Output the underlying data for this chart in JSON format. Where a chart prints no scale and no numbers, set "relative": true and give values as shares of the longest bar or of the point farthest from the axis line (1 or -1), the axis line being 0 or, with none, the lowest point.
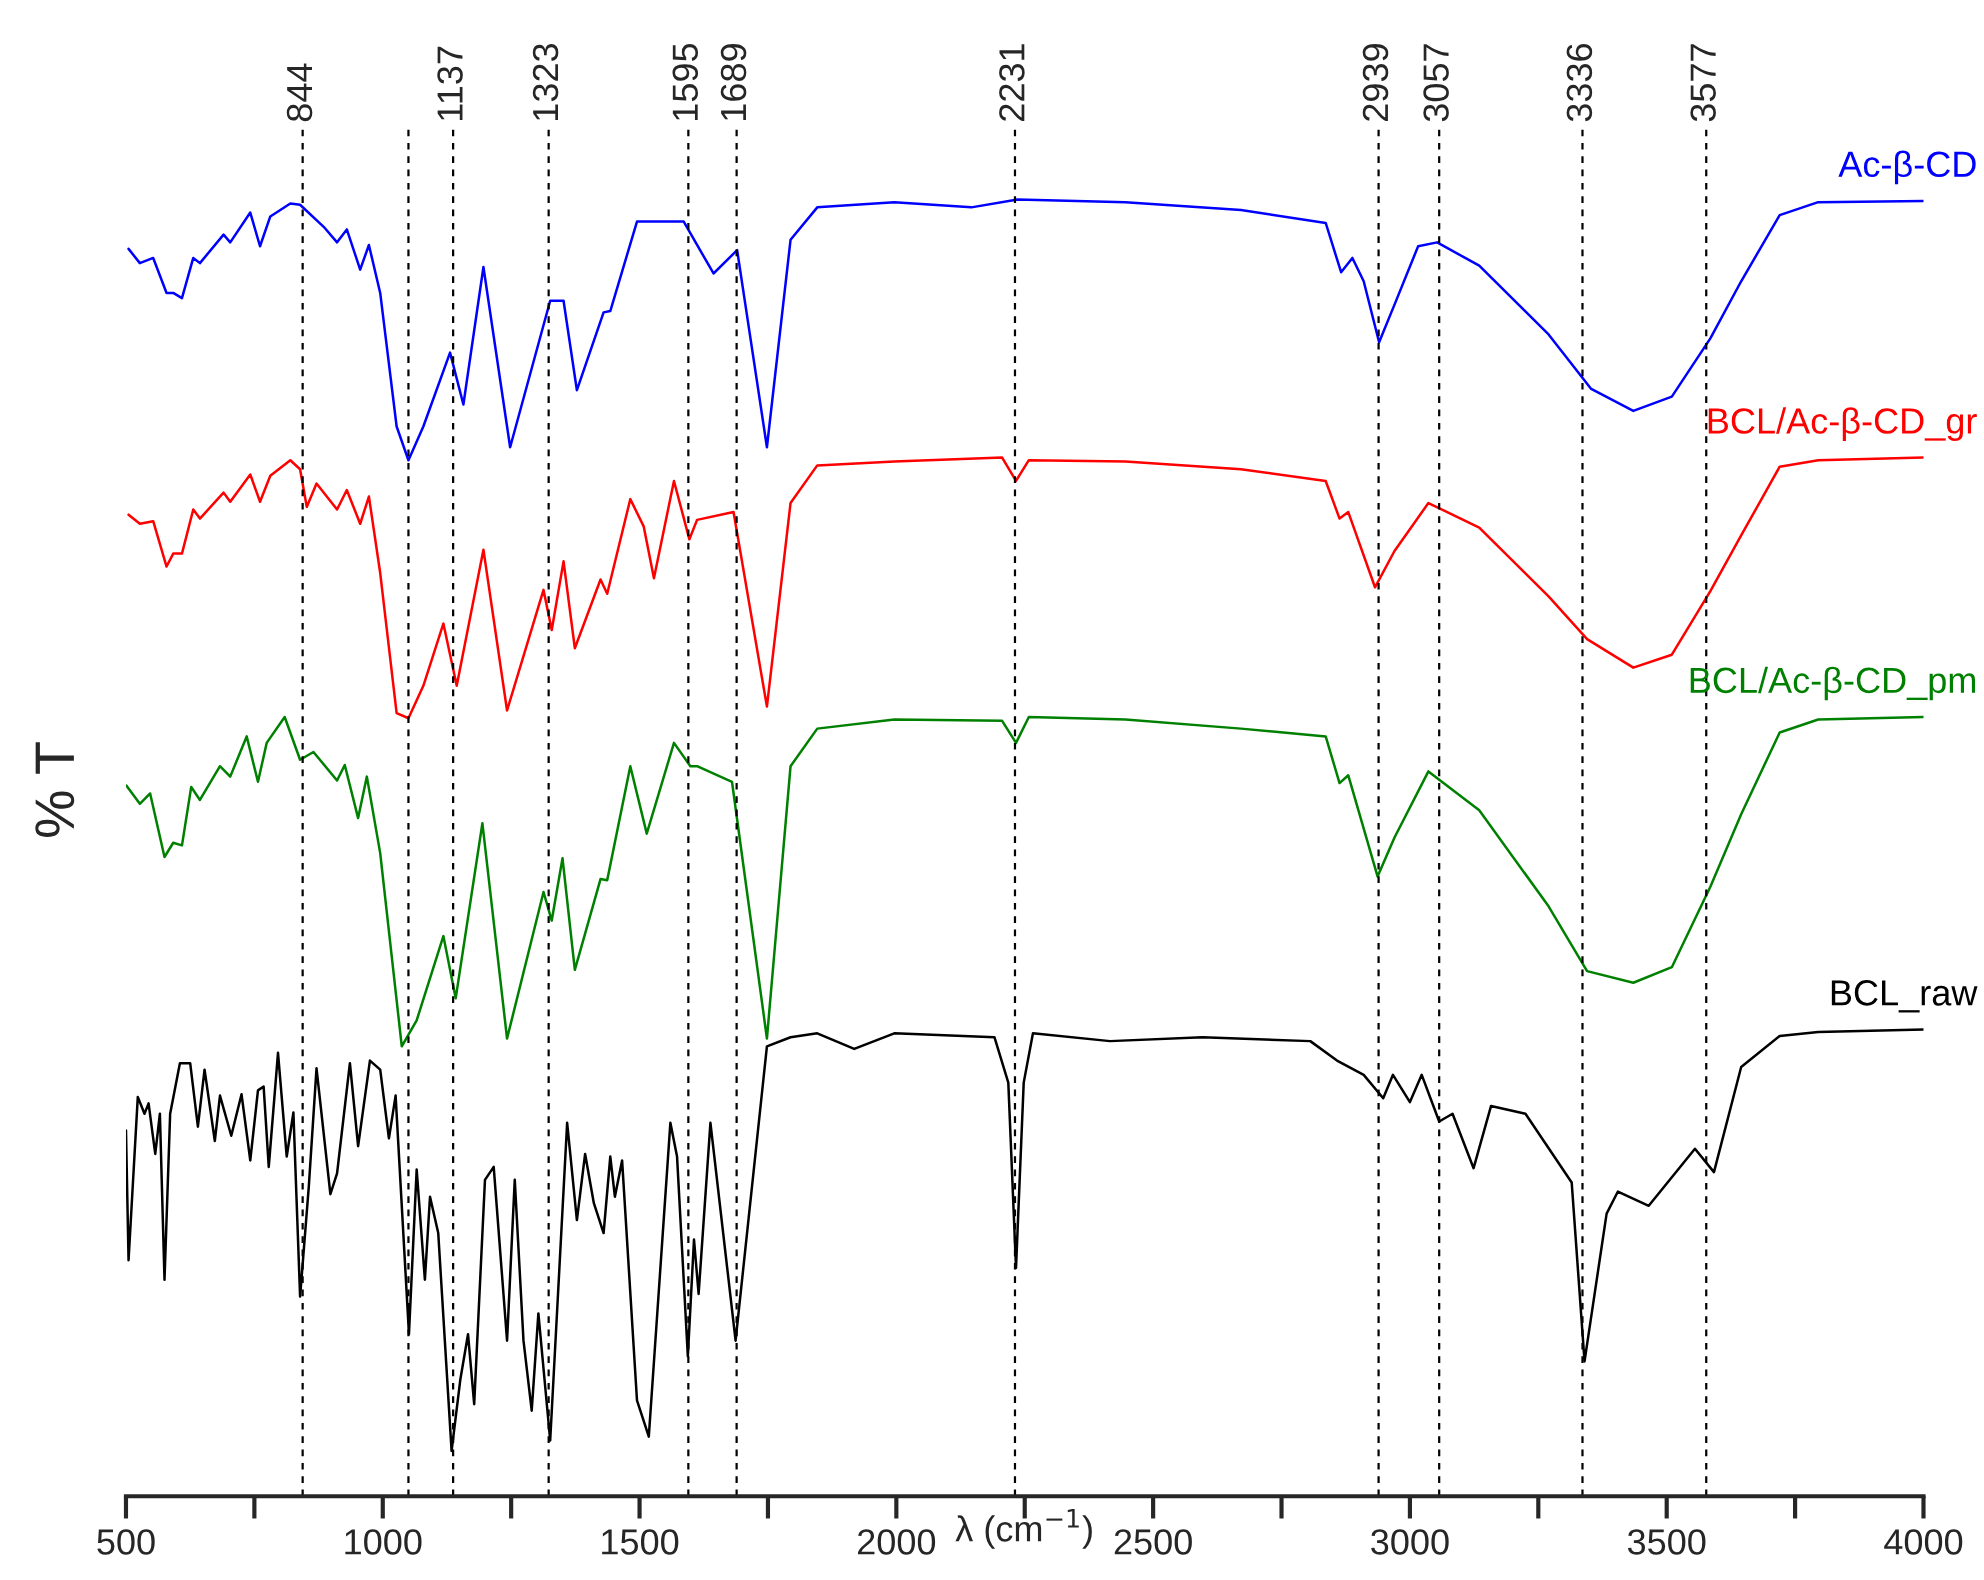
{
  "chart_data": {
    "type": "line",
    "relative": true,
    "xlabel": "λ (cm$^{−1}$)",
    "ylabel": "% T",
    "xlim": [
      500,
      4000
    ],
    "xticks": [
      500,
      {
        "value": 750,
        "label": null
      },
      1000,
      {
        "value": 1250,
        "label": null
      },
      1500,
      {
        "value": 1750,
        "label": null
      },
      2000,
      {
        "value": 2250,
        "label": null
      },
      2500,
      {
        "value": 2750,
        "label": null
      },
      3000,
      {
        "value": 3250,
        "label": null
      },
      3500,
      {
        "value": 3750,
        "label": null
      },
      4000
    ],
    "tick_labels": "x",
    "legend": false,
    "grid": false,
    "ref_lines": [
      {
        "axis": "x",
        "value": 844,
        "label": "844",
        "color": "#000000",
        "line_style": "dashed"
      },
      {
        "axis": "x",
        "value": 1050,
        "label": null,
        "color": "#000000",
        "line_style": "dashed"
      },
      {
        "axis": "x",
        "value": 1137,
        "label": "1137",
        "color": "#000000",
        "line_style": "dashed"
      },
      {
        "axis": "x",
        "value": 1323,
        "label": "1323",
        "color": "#000000",
        "line_style": "dashed"
      },
      {
        "axis": "x",
        "value": 1595,
        "label": "1595",
        "color": "#000000",
        "line_style": "dashed"
      },
      {
        "axis": "x",
        "value": 1689,
        "label": "1689",
        "color": "#000000",
        "line_style": "dashed"
      },
      {
        "axis": "x",
        "value": 2231,
        "label": "2231",
        "color": "#000000",
        "line_style": "dashed"
      },
      {
        "axis": "x",
        "value": 2939,
        "label": "2939",
        "color": "#000000",
        "line_style": "dashed"
      },
      {
        "axis": "x",
        "value": 3057,
        "label": "3057",
        "color": "#000000",
        "line_style": "dashed"
      },
      {
        "axis": "x",
        "value": 3336,
        "label": "3336",
        "color": "#000000",
        "line_style": "dashed"
      },
      {
        "axis": "x",
        "value": 3577,
        "label": "3577",
        "color": "#000000",
        "line_style": "dashed"
      }
    ],
    "series": [
      {
        "name": "Ac-β-CD",
        "color": "#0000ff",
        "x": [
          505,
          527,
          553,
          579,
          592,
          609,
          631,
          644,
          690,
          703,
          742,
          761,
          781,
          820,
          839,
          885,
          911,
          930,
          956,
          973,
          995,
          1027,
          1050,
          1079,
          1131,
          1157,
          1196,
          1248,
          1326,
          1352,
          1378,
          1430,
          1443,
          1495,
          1586,
          1644,
          1690,
          1748,
          1794,
          1846,
          1996,
          2146,
          2236,
          2446,
          2671,
          2836,
          2866,
          2888,
          2910,
          2940,
          2970,
          3016,
          3053,
          3135,
          3270,
          3353,
          3435,
          3510,
          3585,
          3645,
          3720,
          3795,
          4000
        ],
        "values": [
          0.962,
          0.951,
          0.955,
          0.928,
          0.928,
          0.924,
          0.955,
          0.951,
          0.973,
          0.967,
          0.99,
          0.964,
          0.987,
          0.997,
          0.996,
          0.979,
          0.967,
          0.977,
          0.946,
          0.965,
          0.928,
          0.825,
          0.799,
          0.825,
          0.882,
          0.842,
          0.948,
          0.809,
          0.922,
          0.922,
          0.853,
          0.913,
          0.914,
          0.983,
          0.983,
          0.943,
          0.961,
          0.809,
          0.969,
          0.994,
          0.998,
          0.994,
          1.0,
          0.998,
          0.992,
          0.982,
          0.944,
          0.955,
          0.937,
          0.89,
          0.919,
          0.964,
          0.967,
          0.949,
          0.896,
          0.854,
          0.837,
          0.848,
          0.893,
          0.937,
          0.988,
          0.998,
          0.999
        ]
      },
      {
        "name": "BCL/Ac-β-CD_gr",
        "color": "#ff0000",
        "x": [
          505,
          527,
          553,
          579,
          592,
          609,
          631,
          644,
          690,
          703,
          742,
          761,
          781,
          820,
          839,
          852,
          871,
          911,
          930,
          956,
          973,
          995,
          1027,
          1050,
          1079,
          1118,
          1144,
          1196,
          1242,
          1313,
          1329,
          1352,
          1374,
          1424,
          1437,
          1482,
          1508,
          1528,
          1567,
          1597,
          1612,
          1683,
          1748,
          1794,
          1846,
          1996,
          2206,
          2233,
          2258,
          2446,
          2671,
          2836,
          2863,
          2880,
          2932,
          2970,
          3036,
          3135,
          3270,
          3345,
          3435,
          3510,
          3585,
          3645,
          3720,
          3795,
          4000
        ],
        "values": [
          0.757,
          0.75,
          0.752,
          0.717,
          0.727,
          0.727,
          0.761,
          0.754,
          0.774,
          0.767,
          0.788,
          0.767,
          0.787,
          0.799,
          0.792,
          0.763,
          0.781,
          0.761,
          0.776,
          0.75,
          0.771,
          0.712,
          0.604,
          0.6,
          0.625,
          0.673,
          0.625,
          0.73,
          0.606,
          0.699,
          0.668,
          0.721,
          0.654,
          0.707,
          0.696,
          0.769,
          0.748,
          0.708,
          0.783,
          0.738,
          0.753,
          0.759,
          0.609,
          0.766,
          0.795,
          0.798,
          0.801,
          0.783,
          0.799,
          0.798,
          0.792,
          0.783,
          0.754,
          0.759,
          0.701,
          0.729,
          0.766,
          0.747,
          0.694,
          0.661,
          0.639,
          0.649,
          0.698,
          0.741,
          0.794,
          0.799,
          0.801
        ]
      },
      {
        "name": "BCL/Ac-β-CD_pm",
        "color": "#008000",
        "x": [
          501,
          527,
          547,
          575,
          592,
          609,
          627,
          644,
          683,
          703,
          735,
          757,
          774,
          809,
          839,
          865,
          911,
          926,
          952,
          969,
          995,
          1037,
          1066,
          1118,
          1142,
          1194,
          1242,
          1313,
          1329,
          1350,
          1374,
          1424,
          1437,
          1482,
          1514,
          1567,
          1599,
          1612,
          1680,
          1748,
          1794,
          1846,
          1996,
          2206,
          2233,
          2258,
          2446,
          2671,
          2836,
          2863,
          2880,
          2937,
          2970,
          3036,
          3135,
          3270,
          3345,
          3435,
          3510,
          3585,
          3645,
          3720,
          3795,
          4000
        ],
        "values": [
          0.548,
          0.534,
          0.542,
          0.493,
          0.504,
          0.502,
          0.547,
          0.537,
          0.563,
          0.555,
          0.586,
          0.551,
          0.581,
          0.601,
          0.568,
          0.574,
          0.552,
          0.564,
          0.523,
          0.555,
          0.496,
          0.347,
          0.367,
          0.432,
          0.384,
          0.519,
          0.353,
          0.466,
          0.444,
          0.492,
          0.406,
          0.476,
          0.475,
          0.563,
          0.511,
          0.581,
          0.563,
          0.563,
          0.551,
          0.353,
          0.563,
          0.592,
          0.599,
          0.598,
          0.581,
          0.601,
          0.599,
          0.592,
          0.586,
          0.55,
          0.556,
          0.478,
          0.508,
          0.559,
          0.529,
          0.455,
          0.405,
          0.396,
          0.408,
          0.47,
          0.526,
          0.589,
          0.599,
          0.601
        ]
      },
      {
        "name": "BCL_raw",
        "color": "#000000",
        "x": [
          500,
          505,
          523,
          536,
          544,
          557,
          566,
          575,
          586,
          605,
          625,
          640,
          653,
          673,
          683,
          705,
          725,
          742,
          757,
          768,
          778,
          796,
          813,
          826,
          839,
          856,
          871,
          898,
          911,
          936,
          952,
          975,
          995,
          1012,
          1025,
          1051,
          1066,
          1082,
          1092,
          1108,
          1134,
          1151,
          1166,
          1178,
          1199,
          1216,
          1242,
          1257,
          1274,
          1290,
          1303,
          1326,
          1359,
          1378,
          1394,
          1411,
          1430,
          1443,
          1452,
          1466,
          1495,
          1518,
          1560,
          1573,
          1594,
          1606,
          1615,
          1638,
          1687,
          1748,
          1794,
          1846,
          1918,
          1996,
          2191,
          2218,
          2233,
          2248,
          2266,
          2416,
          2596,
          2806,
          2858,
          2910,
          2948,
          2967,
          3000,
          3023,
          3057,
          3083,
          3124,
          3158,
          3225,
          3315,
          3340,
          3383,
          3405,
          3465,
          3555,
          3592,
          3645,
          3720,
          3795,
          4000
        ],
        "values": [
          0.282,
          0.182,
          0.308,
          0.295,
          0.303,
          0.264,
          0.295,
          0.167,
          0.295,
          0.334,
          0.334,
          0.285,
          0.329,
          0.274,
          0.309,
          0.278,
          0.31,
          0.259,
          0.313,
          0.316,
          0.254,
          0.342,
          0.262,
          0.296,
          0.154,
          0.239,
          0.33,
          0.233,
          0.249,
          0.334,
          0.27,
          0.336,
          0.329,
          0.276,
          0.309,
          0.125,
          0.252,
          0.167,
          0.231,
          0.203,
          0.035,
          0.09,
          0.125,
          0.071,
          0.244,
          0.254,
          0.12,
          0.244,
          0.12,
          0.066,
          0.141,
          0.043,
          0.288,
          0.213,
          0.264,
          0.226,
          0.203,
          0.262,
          0.231,
          0.259,
          0.074,
          0.046,
          0.288,
          0.262,
          0.108,
          0.198,
          0.156,
          0.288,
          0.12,
          0.347,
          0.354,
          0.357,
          0.345,
          0.357,
          0.354,
          0.319,
          0.176,
          0.319,
          0.357,
          0.351,
          0.354,
          0.351,
          0.336,
          0.325,
          0.307,
          0.325,
          0.304,
          0.325,
          0.289,
          0.295,
          0.253,
          0.301,
          0.295,
          0.242,
          0.104,
          0.218,
          0.235,
          0.224,
          0.268,
          0.25,
          0.331,
          0.355,
          0.358,
          0.36
        ]
      }
    ]
  }
}
